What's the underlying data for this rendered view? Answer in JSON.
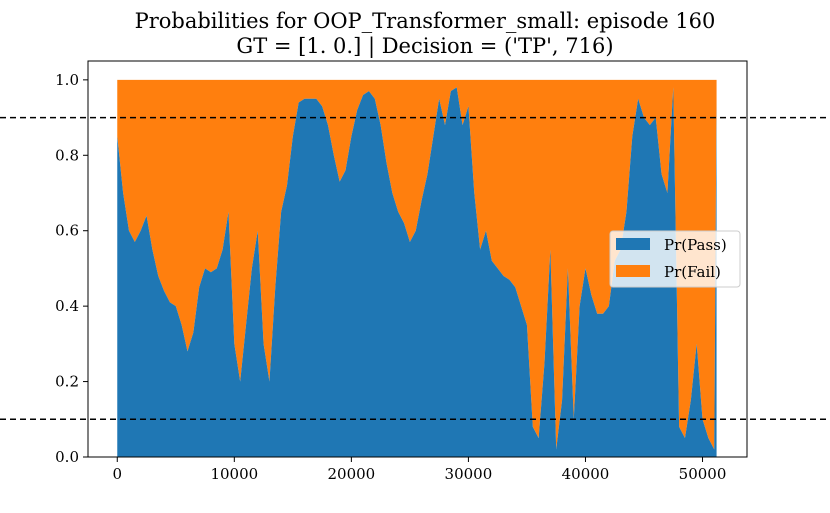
{
  "chart_data": {
    "type": "area",
    "stacked": true,
    "title": "Probabilities for OOP_Transformer_small: episode 160",
    "subtitle": "GT = [1. 0.] | Decision = ('TP', 716)",
    "xlabel": "",
    "ylabel": "",
    "xlim": [
      -2500,
      53800
    ],
    "ylim": [
      0.0,
      1.05
    ],
    "xticks": [
      0,
      10000,
      20000,
      30000,
      40000,
      50000
    ],
    "yticks": [
      0.0,
      0.2,
      0.4,
      0.6,
      0.8,
      1.0
    ],
    "grid": false,
    "legend_position": "center-right",
    "thresholds": [
      0.1,
      0.9
    ],
    "threshold_color": "#000000",
    "x": [
      0,
      500,
      1000,
      1500,
      2000,
      2500,
      3000,
      3500,
      4000,
      4500,
      5000,
      5500,
      6000,
      6500,
      7000,
      7500,
      8000,
      8500,
      9000,
      9500,
      10000,
      10500,
      11000,
      11500,
      12000,
      12500,
      13000,
      13500,
      14000,
      14500,
      15000,
      15500,
      16000,
      16500,
      17000,
      17500,
      18000,
      18500,
      19000,
      19500,
      20000,
      20500,
      21000,
      21500,
      22000,
      22500,
      23000,
      23500,
      24000,
      24500,
      25000,
      25500,
      26000,
      26500,
      27000,
      27500,
      28000,
      28500,
      29000,
      29500,
      30000,
      30500,
      31000,
      31500,
      32000,
      32500,
      33000,
      33500,
      34000,
      34500,
      35000,
      35500,
      36000,
      36500,
      37000,
      37500,
      38000,
      38500,
      39000,
      39500,
      40000,
      40500,
      41000,
      41500,
      42000,
      42500,
      43000,
      43500,
      44000,
      44500,
      45000,
      45500,
      46000,
      46500,
      47000,
      47500,
      48000,
      48500,
      49000,
      49500,
      50000,
      50500,
      51000,
      51200
    ],
    "series": [
      {
        "name": "Pr(Pass)",
        "color": "#1f77b4",
        "values": [
          0.85,
          0.7,
          0.6,
          0.57,
          0.6,
          0.64,
          0.55,
          0.48,
          0.44,
          0.41,
          0.4,
          0.35,
          0.28,
          0.33,
          0.45,
          0.5,
          0.49,
          0.5,
          0.55,
          0.65,
          0.3,
          0.2,
          0.35,
          0.5,
          0.6,
          0.3,
          0.2,
          0.45,
          0.65,
          0.72,
          0.85,
          0.94,
          0.95,
          0.95,
          0.95,
          0.93,
          0.88,
          0.8,
          0.73,
          0.76,
          0.85,
          0.92,
          0.96,
          0.97,
          0.95,
          0.88,
          0.78,
          0.7,
          0.65,
          0.62,
          0.57,
          0.6,
          0.68,
          0.75,
          0.85,
          0.95,
          0.88,
          0.97,
          0.98,
          0.88,
          0.93,
          0.7,
          0.55,
          0.6,
          0.52,
          0.5,
          0.48,
          0.47,
          0.45,
          0.4,
          0.35,
          0.08,
          0.05,
          0.25,
          0.55,
          0.02,
          0.15,
          0.5,
          0.1,
          0.4,
          0.5,
          0.43,
          0.38,
          0.38,
          0.4,
          0.52,
          0.55,
          0.65,
          0.85,
          0.95,
          0.9,
          0.88,
          0.9,
          0.75,
          0.7,
          0.98,
          0.08,
          0.05,
          0.15,
          0.3,
          0.1,
          0.05,
          0.02,
          0.95
        ]
      },
      {
        "name": "Pr(Fail)",
        "color": "#ff7f0e",
        "values": "1 - Pr(Pass)"
      }
    ]
  }
}
